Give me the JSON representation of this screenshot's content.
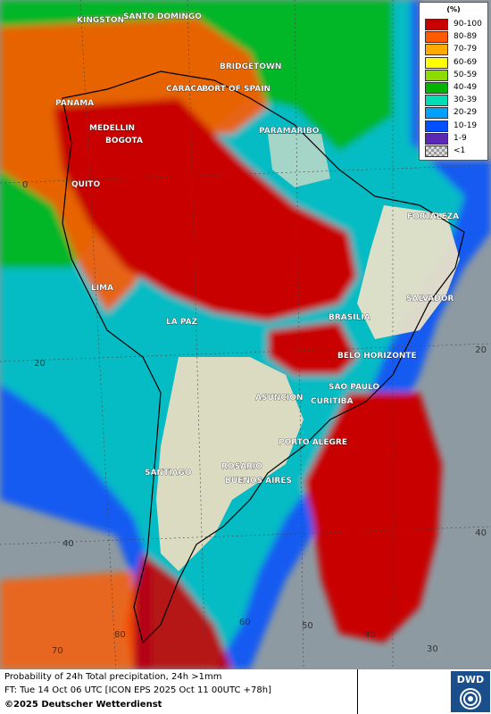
{
  "legend": {
    "unit": "(%)",
    "bins": [
      {
        "label": "90-100",
        "color": "#c80000"
      },
      {
        "label": "80-89",
        "color": "#ff5a00"
      },
      {
        "label": "70-79",
        "color": "#ffaa00"
      },
      {
        "label": "60-69",
        "color": "#ffff00"
      },
      {
        "label": "50-59",
        "color": "#8cdc00"
      },
      {
        "label": "40-49",
        "color": "#00b400"
      },
      {
        "label": "30-39",
        "color": "#00dcb4"
      },
      {
        "label": "20-29",
        "color": "#00a0ff"
      },
      {
        "label": "10-19",
        "color": "#0050ff"
      },
      {
        "label": "1-9",
        "color": "#5a28b4"
      },
      {
        "label": "<1",
        "color": "#bbbbbb"
      }
    ]
  },
  "cities": [
    {
      "name": "KINGSTON"
    },
    {
      "name": "SANTO DOMINGO"
    },
    {
      "name": "BRIDGETOWN"
    },
    {
      "name": "PANAMA"
    },
    {
      "name": "CARACAS"
    },
    {
      "name": "PORT OF SPAIN"
    },
    {
      "name": "MEDELLIN"
    },
    {
      "name": "BOGOTA"
    },
    {
      "name": "PARAMARIBO"
    },
    {
      "name": "QUITO"
    },
    {
      "name": "FORTALEZA"
    },
    {
      "name": "LIMA"
    },
    {
      "name": "SALVADOR"
    },
    {
      "name": "BRASILIA"
    },
    {
      "name": "LA PAZ"
    },
    {
      "name": "BELO HORIZONTE"
    },
    {
      "name": "SAO PAULO"
    },
    {
      "name": "ASUNCION"
    },
    {
      "name": "CURITIBA"
    },
    {
      "name": "PORTO ALEGRE"
    },
    {
      "name": "SANTIAGO"
    },
    {
      "name": "ROSARIO"
    },
    {
      "name": "BUENOS AIRES"
    }
  ],
  "grid_labels": [
    "0",
    "20",
    "20",
    "40",
    "40",
    "60",
    "50",
    "40",
    "30",
    "80",
    "70"
  ],
  "footer": {
    "line1": "Probability of 24h Total precipitation, 24h >1mm",
    "line2": "FT: Tue 14 Oct 06 UTC [ICON EPS 2025 Oct 11 00UTC +78h]",
    "line3": "©2025 Deutscher Wetterdienst",
    "logo_text": "DWD"
  }
}
